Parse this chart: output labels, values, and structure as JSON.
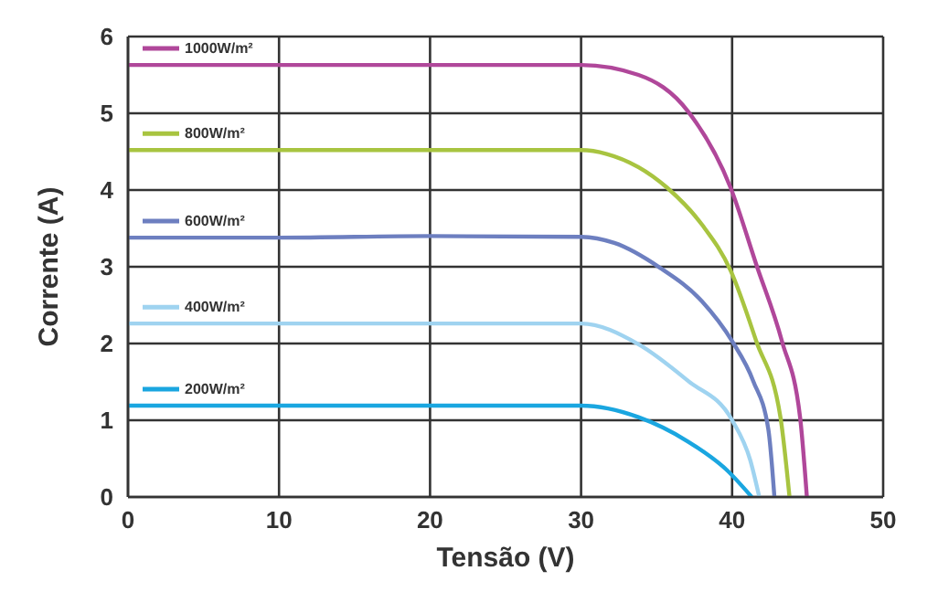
{
  "chart_data": {
    "type": "line",
    "xlabel": "Tensão (V)",
    "ylabel": "Corrente (A)",
    "xlim": [
      0,
      50
    ],
    "ylim": [
      0,
      6
    ],
    "xticks": [
      0,
      10,
      20,
      30,
      40,
      50
    ],
    "yticks": [
      0,
      1,
      2,
      3,
      4,
      5,
      6
    ],
    "grid": true,
    "legend": "top left",
    "marker": "none",
    "line_style": "solid",
    "series": [
      {
        "name": "1000W/m²",
        "color": "#b0479a",
        "x": [
          0,
          10,
          20,
          30,
          33.8,
          37.1,
          39.9,
          41.6,
          43.3,
          44.5,
          44.95
        ],
        "values": [
          5.63,
          5.63,
          5.63,
          5.63,
          5.5,
          5.02,
          4.03,
          3.03,
          2.03,
          1.04,
          0
        ]
      },
      {
        "name": "800W/m²",
        "color": "#a8c440",
        "x": [
          0,
          10,
          20,
          30,
          31.7,
          35.7,
          38,
          39.9,
          41.6,
          43.2,
          43.8
        ],
        "values": [
          4.52,
          4.52,
          4.52,
          4.52,
          4.47,
          4.03,
          3.55,
          2.95,
          2.03,
          1.04,
          0
        ]
      },
      {
        "name": "600W/m²",
        "color": "#6d7fc0",
        "x": [
          0,
          10,
          20,
          30,
          32.2,
          35.2,
          38,
          40,
          41.4,
          42.4,
          42.8
        ],
        "values": [
          3.38,
          3.38,
          3.4,
          3.39,
          3.31,
          2.99,
          2.55,
          2.03,
          1.51,
          0.88,
          0
        ]
      },
      {
        "name": "400W/m²",
        "color": "#9fd3f0",
        "x": [
          0,
          10,
          20,
          30,
          33.8,
          37.1,
          40,
          41.2,
          41.8
        ],
        "values": [
          2.26,
          2.26,
          2.26,
          2.26,
          1.99,
          1.51,
          1.0,
          0.48,
          0
        ]
      },
      {
        "name": "200W/m²",
        "color": "#1aa6e0",
        "x": [
          0,
          10,
          20,
          30,
          33.8,
          37.1,
          39.6,
          41.3
        ],
        "values": [
          1.19,
          1.19,
          1.19,
          1.19,
          1.04,
          0.72,
          0.36,
          0
        ]
      }
    ]
  }
}
